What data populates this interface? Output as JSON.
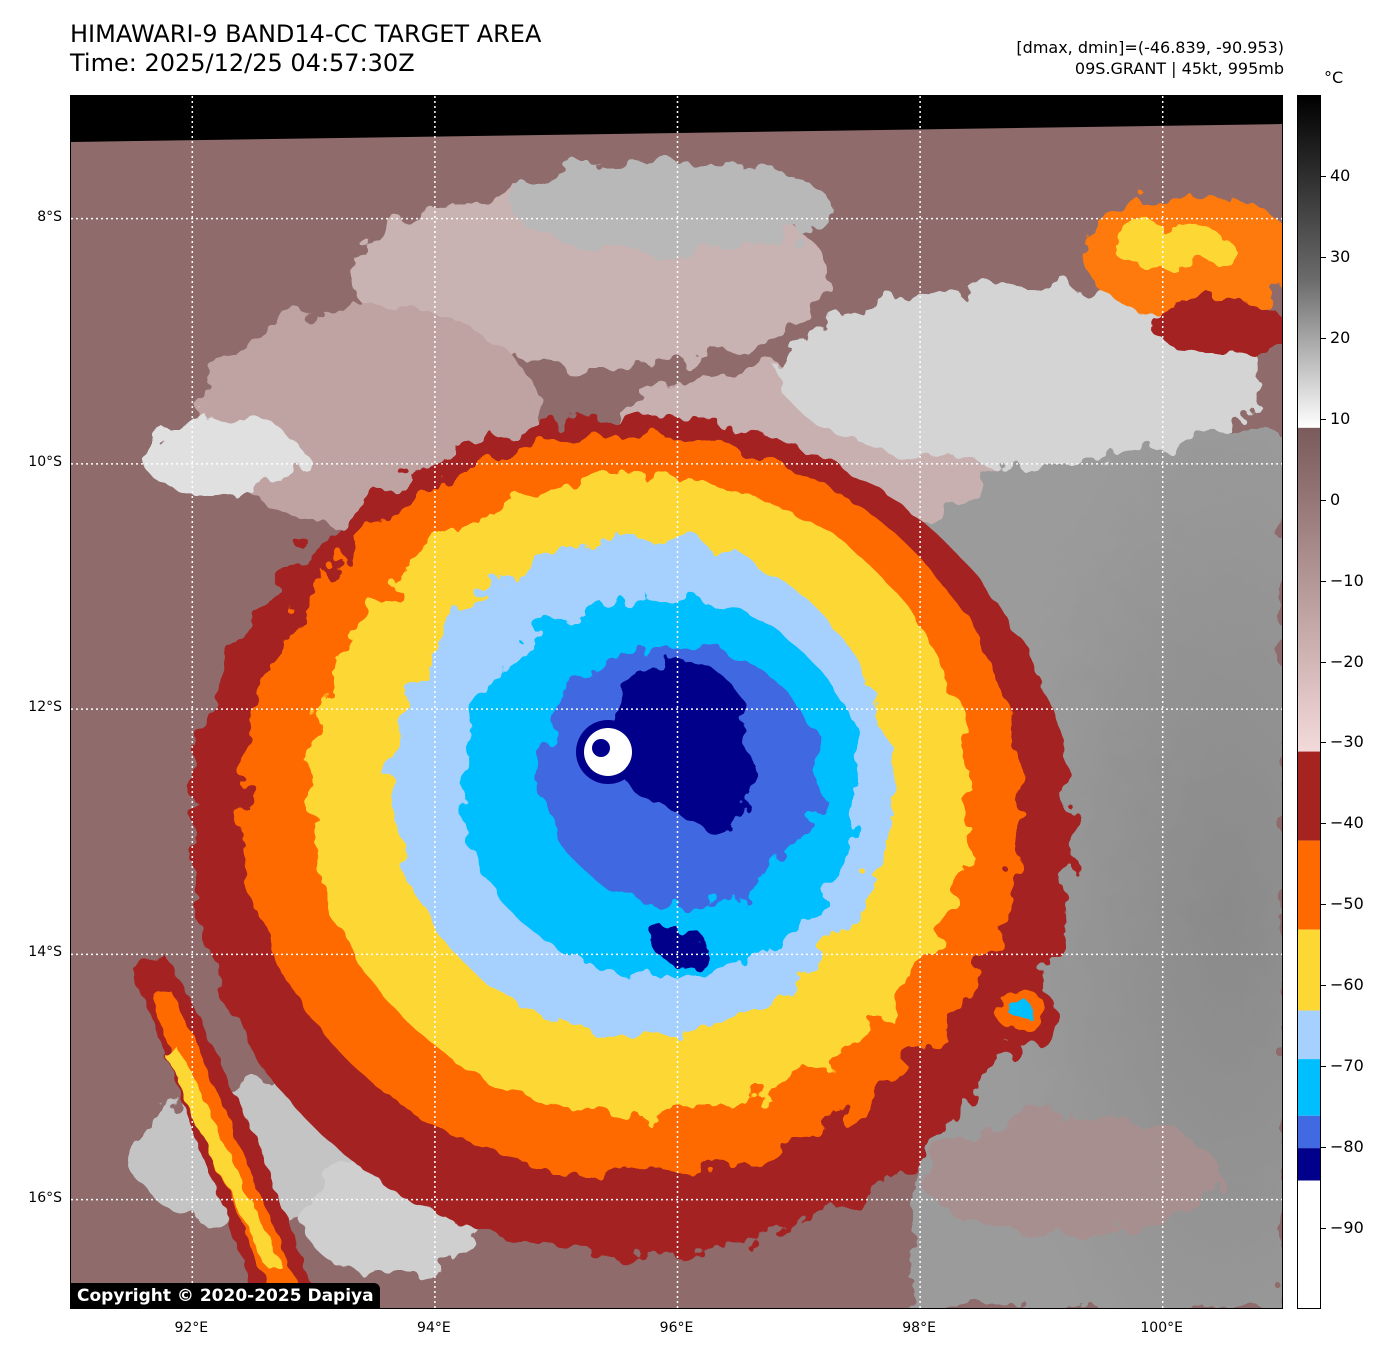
{
  "header": {
    "title_line1": "HIMAWARI-9 BAND14-CC TARGET AREA",
    "title_line2": "Time: 2025/12/25 04:57:30Z",
    "range_text": "[dmax, dmin]=(-46.839, -90.953)",
    "storm_text": "09S.GRANT | 45kt, 995mb"
  },
  "colorbar": {
    "unit": "°C",
    "ticks": [
      "40",
      "30",
      "20",
      "10",
      "0",
      "−10",
      "−20",
      "−30",
      "−40",
      "−50",
      "−60",
      "−70",
      "−80",
      "−90"
    ],
    "tick_values": [
      40,
      30,
      20,
      10,
      0,
      -10,
      -20,
      -30,
      -40,
      -50,
      -60,
      -70,
      -80,
      -90
    ],
    "range": [
      -100,
      50
    ],
    "segments": [
      {
        "from": 50,
        "to": 9,
        "color": "grayscale"
      },
      {
        "from": 9,
        "to": -31,
        "color": "brown-pink"
      },
      {
        "from": -31,
        "to": -42,
        "color": "#a52420"
      },
      {
        "from": -42,
        "to": -53,
        "color": "#ff6a00"
      },
      {
        "from": -53,
        "to": -63,
        "color": "#fdd835"
      },
      {
        "from": -63,
        "to": -69,
        "color": "#a6d1ff"
      },
      {
        "from": -69,
        "to": -76,
        "color": "#00bfff"
      },
      {
        "from": -76,
        "to": -80,
        "color": "#4169e1"
      },
      {
        "from": -80,
        "to": -84,
        "color": "#00008b"
      },
      {
        "from": -84,
        "to": -100,
        "color": "#ffffff"
      }
    ]
  },
  "map": {
    "lon_range": [
      91.0,
      101.0
    ],
    "lat_range": [
      -16.9,
      -7.0
    ],
    "lon_labels": [
      "92°E",
      "94°E",
      "96°E",
      "98°E",
      "100°E"
    ],
    "lon_values": [
      92,
      94,
      96,
      98,
      100
    ],
    "lat_labels": [
      "8°S",
      "10°S",
      "12°S",
      "14°S",
      "16°S"
    ],
    "lat_values": [
      -8,
      -10,
      -12,
      -14,
      -16
    ],
    "storm_center": {
      "lon": 95.3,
      "lat": -12.3
    },
    "copyright": "Copyright © 2020-2025 Dapiya"
  }
}
